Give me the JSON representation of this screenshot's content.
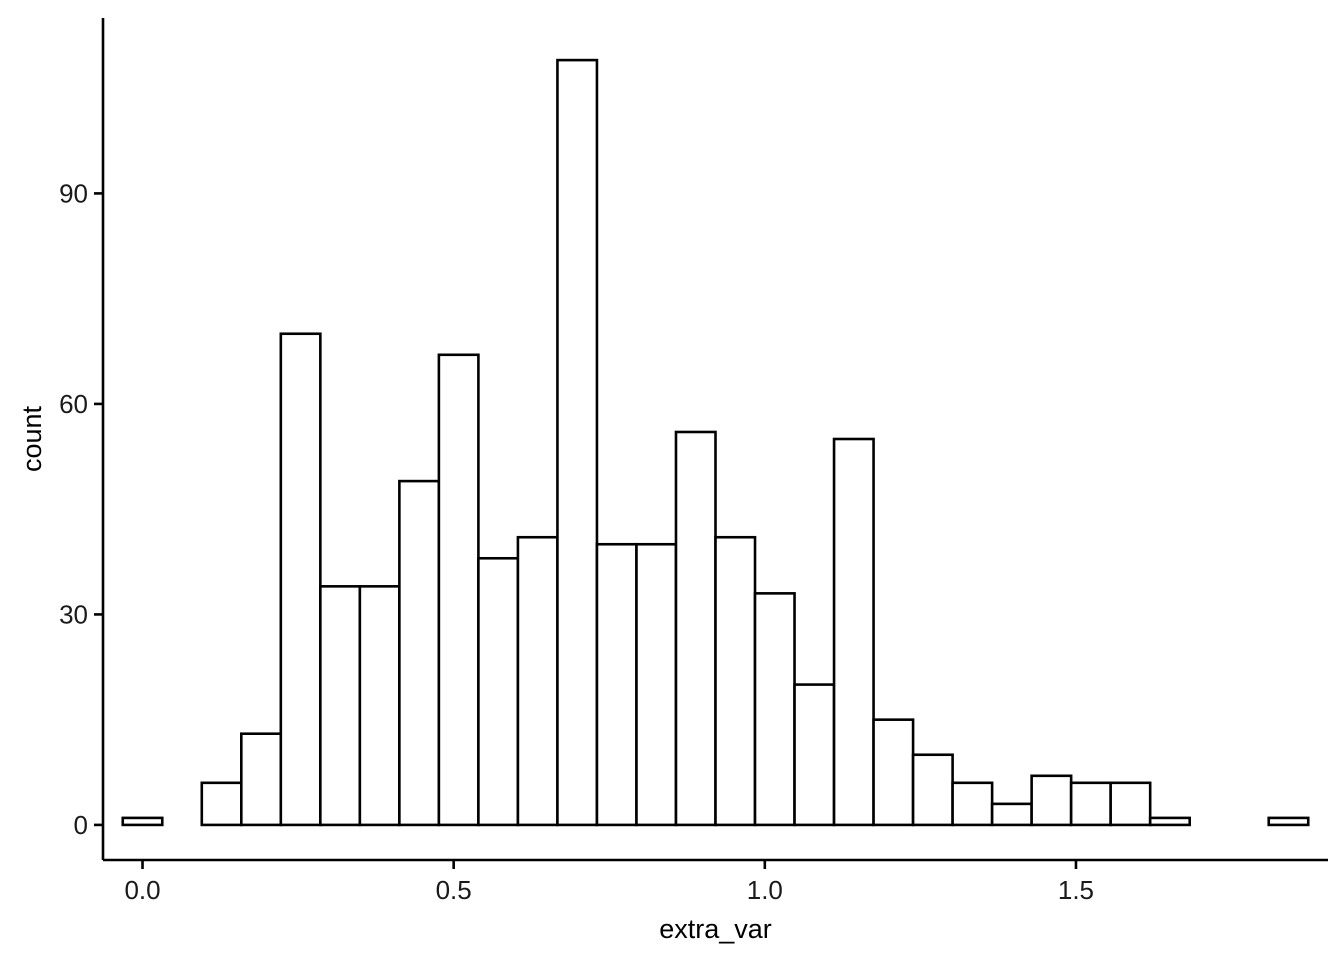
{
  "chart_data": {
    "type": "bar",
    "subtype": "histogram",
    "title": "",
    "xlabel": "extra_var",
    "ylabel": "count",
    "bin_width": 0.0635,
    "bin_centers": [
      0.0,
      0.0635,
      0.127,
      0.1905,
      0.254,
      0.3175,
      0.381,
      0.4445,
      0.508,
      0.5715,
      0.635,
      0.6985,
      0.762,
      0.8255,
      0.889,
      0.9525,
      1.016,
      1.0795,
      1.143,
      1.2065,
      1.27,
      1.3335,
      1.397,
      1.4605,
      1.524,
      1.5875,
      1.651,
      1.7145,
      1.778,
      1.8415
    ],
    "values": [
      1,
      0,
      6,
      13,
      70,
      34,
      34,
      49,
      67,
      38,
      41,
      109,
      40,
      40,
      56,
      41,
      33,
      20,
      55,
      15,
      10,
      6,
      3,
      7,
      6,
      6,
      1,
      0,
      0,
      1
    ],
    "xlim": [
      -0.0635,
      1.905
    ],
    "ylim": [
      -5,
      115
    ],
    "x_ticks": [
      {
        "value": 0.0,
        "label": "0.0"
      },
      {
        "value": 0.5,
        "label": "0.5"
      },
      {
        "value": 1.0,
        "label": "1.0"
      },
      {
        "value": 1.5,
        "label": "1.5"
      }
    ],
    "y_ticks": [
      {
        "value": 0,
        "label": "0"
      },
      {
        "value": 30,
        "label": "30"
      },
      {
        "value": 60,
        "label": "60"
      },
      {
        "value": 90,
        "label": "90"
      }
    ],
    "grid": false,
    "legend": "none",
    "colors": {
      "bar_fill": "#ffffff",
      "bar_outline": "#000000",
      "axis": "#000000",
      "background": "#ffffff"
    }
  }
}
